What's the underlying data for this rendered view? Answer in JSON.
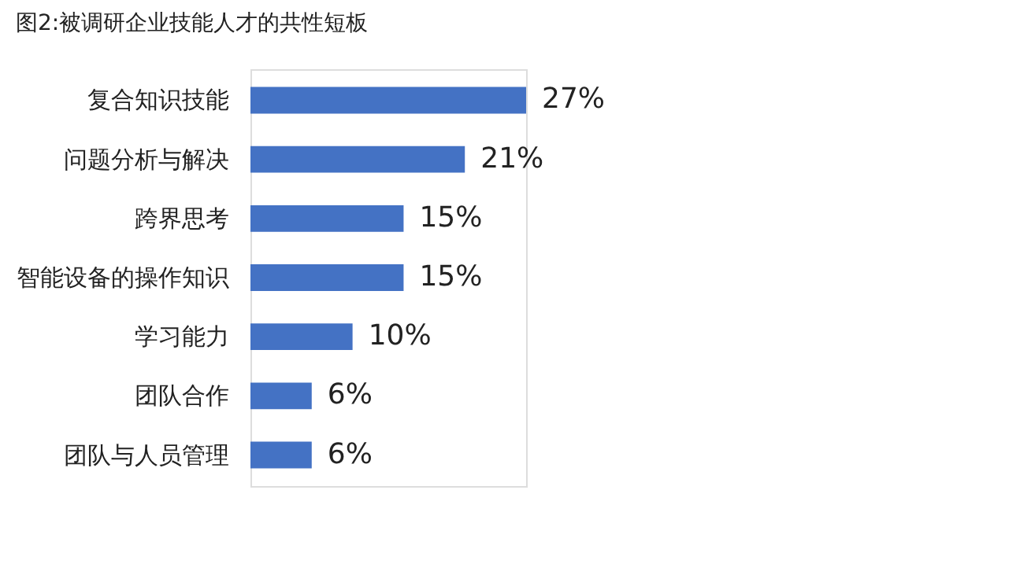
{
  "chart_data": {
    "type": "bar",
    "orientation": "horizontal",
    "title": "图2:被调研企业技能人才的共性短板",
    "categories": [
      "复合知识技能",
      "问题分析与解决",
      "跨界思考",
      "智能设备的操作知识",
      "学习能力",
      "团队合作",
      "团队与人员管理"
    ],
    "values": [
      27,
      21,
      15,
      15,
      10,
      6,
      6
    ],
    "value_labels": [
      "27%",
      "21%",
      "15%",
      "15%",
      "10%",
      "6%",
      "6%"
    ],
    "color": "#4472c4"
  }
}
